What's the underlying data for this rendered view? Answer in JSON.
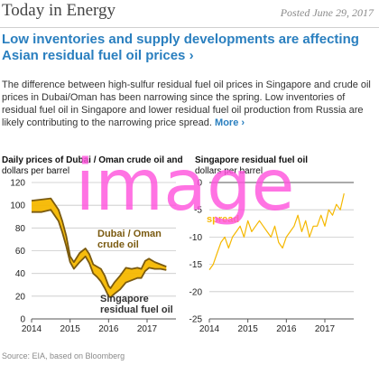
{
  "header": {
    "brand": "Today in Energy",
    "posted": "Posted June 29, 2017"
  },
  "article": {
    "headline": "Low inventories and supply developments are affecting Asian residual fuel oil prices",
    "headline_arrow": "›",
    "summary": "The difference between high-sulfur residual fuel oil prices in Singapore and crude oil prices in Dubai/Oman has been narrowing since the spring. Low inventories of residual fuel oil in Singapore and lower residual fuel oil production from Russia are likely contributing to the narrowing price spread.",
    "more_label": "More",
    "more_arrow": "›"
  },
  "source_note": "Source: EIA, based on Bloomberg",
  "watermark": "image",
  "colors": {
    "accent": "#2a7fbf",
    "dubai": "#7a5a10",
    "singapore": "#f5b800",
    "spread": "#f5b800",
    "watermark": "#ff55dd",
    "grid": "#c8c8c8"
  },
  "chart_data": [
    {
      "type": "line",
      "title": "Daily prices of Dubai / Oman crude oil and Singapore residual fuel oil",
      "title_left": "Daily prices of Dubai / Oman crude oil and",
      "ylabel": "dollars per barrel",
      "ylim": [
        0,
        120
      ],
      "yticks": [
        0,
        20,
        40,
        60,
        80,
        100,
        120
      ],
      "xlim": [
        2014,
        2017.75
      ],
      "xticks": [
        "2014",
        "2015",
        "2016",
        "2017"
      ],
      "grid": true,
      "legend": "inline",
      "series": [
        {
          "name": "Dubai / Oman crude oil",
          "label": [
            "Dubai / Oman",
            "crude oil"
          ],
          "x": [
            2014.0,
            2014.25,
            2014.5,
            2014.6,
            2014.7,
            2014.8,
            2014.9,
            2015.0,
            2015.1,
            2015.25,
            2015.4,
            2015.5,
            2015.6,
            2015.7,
            2015.8,
            2015.9,
            2016.0,
            2016.05,
            2016.15,
            2016.3,
            2016.45,
            2016.6,
            2016.75,
            2016.85,
            2016.95,
            2017.05,
            2017.2,
            2017.35,
            2017.5
          ],
          "values": [
            104,
            105,
            106,
            101,
            96,
            86,
            73,
            55,
            50,
            58,
            62,
            57,
            48,
            46,
            44,
            38,
            29,
            27,
            32,
            38,
            45,
            44,
            45,
            44,
            51,
            53,
            50,
            48,
            46
          ]
        },
        {
          "name": "Singapore residual fuel oil",
          "label": [
            "Singapore",
            "residual fuel oil"
          ],
          "x": [
            2014.0,
            2014.25,
            2014.5,
            2014.6,
            2014.7,
            2014.8,
            2014.9,
            2015.0,
            2015.1,
            2015.25,
            2015.4,
            2015.5,
            2015.6,
            2015.7,
            2015.8,
            2015.9,
            2016.0,
            2016.05,
            2016.15,
            2016.3,
            2016.45,
            2016.6,
            2016.75,
            2016.85,
            2016.95,
            2017.05,
            2017.2,
            2017.35,
            2017.5
          ],
          "values": [
            94,
            94,
            96,
            91,
            86,
            76,
            64,
            50,
            44,
            50,
            55,
            49,
            40,
            37,
            33,
            27,
            20,
            19,
            22,
            26,
            32,
            34,
            36,
            36,
            42,
            45,
            44,
            44,
            43
          ]
        }
      ]
    },
    {
      "type": "line",
      "title": "Singapore residual fuel oil spread",
      "title_right": "Singapore residual fuel oil",
      "ylabel": "dollars per barrel",
      "ylim": [
        -25,
        0
      ],
      "yticks": [
        0,
        -5,
        -10,
        -15,
        -20,
        -25
      ],
      "xlim": [
        2014,
        2017.75
      ],
      "xticks": [
        "2014",
        "2015",
        "2016",
        "2017"
      ],
      "grid": true,
      "legend": "inline",
      "series": [
        {
          "name": "spread",
          "label": [
            "spread"
          ],
          "x": [
            2014.0,
            2014.1,
            2014.2,
            2014.3,
            2014.4,
            2014.5,
            2014.6,
            2014.7,
            2014.8,
            2014.9,
            2015.0,
            2015.1,
            2015.2,
            2015.3,
            2015.4,
            2015.5,
            2015.6,
            2015.7,
            2015.8,
            2015.9,
            2016.0,
            2016.1,
            2016.2,
            2016.3,
            2016.4,
            2016.5,
            2016.6,
            2016.7,
            2016.8,
            2016.9,
            2017.0,
            2017.1,
            2017.2,
            2017.3,
            2017.4,
            2017.5
          ],
          "values": [
            -16,
            -15,
            -13,
            -11,
            -10,
            -12,
            -10,
            -9,
            -8,
            -10,
            -7,
            -9,
            -8,
            -7,
            -8,
            -9,
            -10,
            -8,
            -11,
            -12,
            -10,
            -9,
            -8,
            -6,
            -9,
            -7,
            -10,
            -8,
            -8,
            -6,
            -8,
            -5,
            -6,
            -4,
            -5,
            -2
          ]
        }
      ]
    }
  ]
}
